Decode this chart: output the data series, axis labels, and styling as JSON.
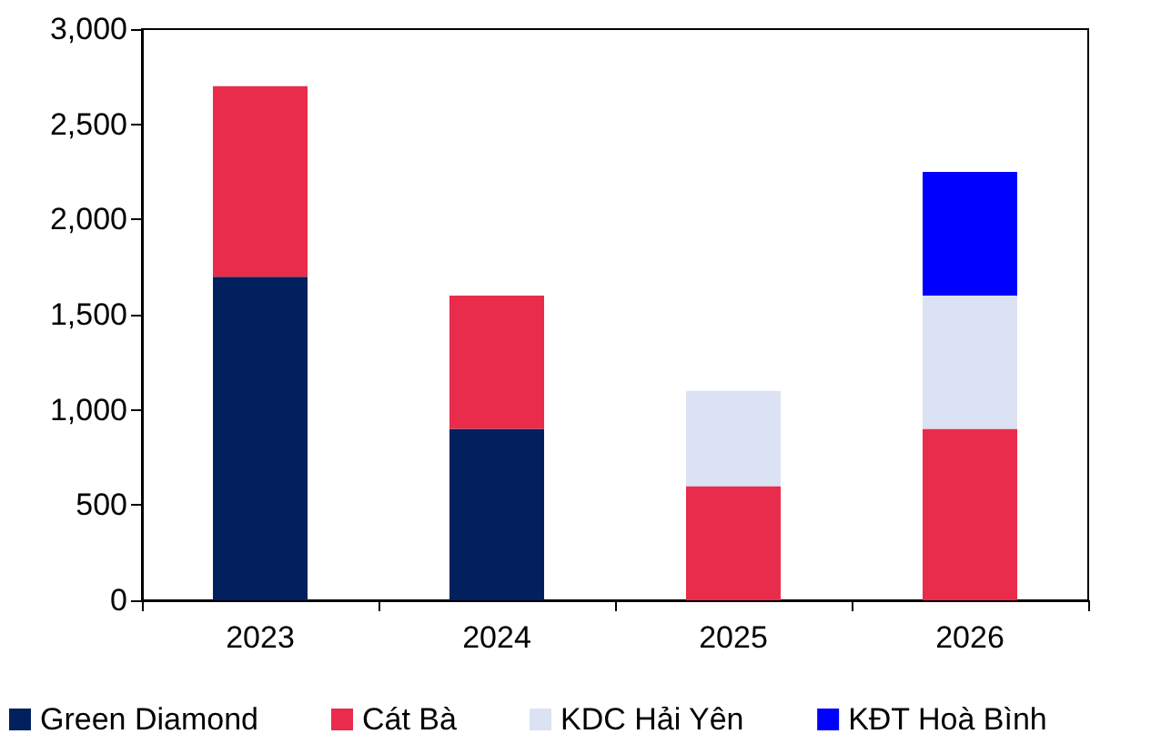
{
  "chart_data": {
    "type": "bar",
    "stacked": true,
    "categories": [
      "2023",
      "2024",
      "2025",
      "2026"
    ],
    "series": [
      {
        "name": "Green Diamond",
        "color": "#03205e",
        "values": [
          1700,
          900,
          null,
          null
        ]
      },
      {
        "name": "Cát Bà",
        "color": "#e92c4b",
        "values": [
          1000,
          700,
          600,
          900
        ]
      },
      {
        "name": "KDC Hải Yên",
        "color": "#dae2f3",
        "values": [
          null,
          null,
          500,
          700
        ]
      },
      {
        "name": "KĐT Hoà Bình",
        "color": "#0000ff",
        "values": [
          null,
          null,
          null,
          650
        ]
      }
    ],
    "ylim": [
      0,
      3000
    ],
    "yticks": [
      0,
      500,
      {
        "value": 1000,
        "label": "1,000"
      },
      {
        "value": 1500,
        "label": "1,500"
      },
      {
        "value": 2000,
        "label": "2,000"
      },
      {
        "value": 2500,
        "label": "2,500"
      },
      {
        "value": 3000,
        "label": "3,000"
      }
    ],
    "grid": false,
    "legend": "bottom"
  }
}
